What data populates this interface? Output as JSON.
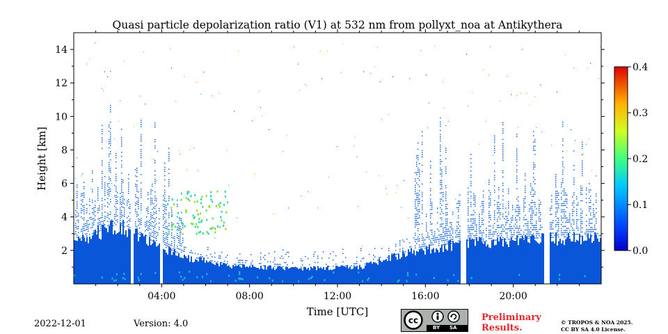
{
  "chart_data": {
    "type": "heatmap",
    "title": "Quasi particle depolarization ratio (V1) at 532 nm from pollyxt_noa at Antikythera",
    "xlabel": "Time [UTC]",
    "ylabel": "Height [km]",
    "xlim": [
      0,
      24
    ],
    "ylim": [
      0,
      15
    ],
    "x_ticks": [
      {
        "value": 4,
        "label": "04:00"
      },
      {
        "value": 8,
        "label": "08:00"
      },
      {
        "value": 12,
        "label": "12:00"
      },
      {
        "value": 16,
        "label": "16:00"
      },
      {
        "value": 20,
        "label": "20:00"
      }
    ],
    "y_ticks": [
      {
        "value": 2,
        "label": "2"
      },
      {
        "value": 4,
        "label": "4"
      },
      {
        "value": 6,
        "label": "6"
      },
      {
        "value": 8,
        "label": "8"
      },
      {
        "value": 10,
        "label": "10"
      },
      {
        "value": 12,
        "label": "12"
      },
      {
        "value": 14,
        "label": "14"
      }
    ],
    "colorbar": {
      "min": 0.0,
      "max": 0.4,
      "ticks": [
        {
          "value": 0.0,
          "label": "0.0"
        },
        {
          "value": 0.1,
          "label": "0.1"
        },
        {
          "value": 0.2,
          "label": "0.2"
        },
        {
          "value": 0.3,
          "label": "0.3"
        },
        {
          "value": 0.4,
          "label": "0.4"
        }
      ],
      "colormap": "jet"
    },
    "features": {
      "boundary_layer_top_km": [
        {
          "time": 0,
          "height": 2.5
        },
        {
          "time": 2,
          "height": 3.5
        },
        {
          "time": 4,
          "height": 2.2
        },
        {
          "time": 5,
          "height": 1.6
        },
        {
          "time": 7,
          "height": 1.1
        },
        {
          "time": 10,
          "height": 0.9
        },
        {
          "time": 13,
          "height": 1.0
        },
        {
          "time": 15,
          "height": 1.8
        },
        {
          "time": 17,
          "height": 2.3
        },
        {
          "time": 20,
          "height": 2.6
        },
        {
          "time": 24,
          "height": 2.8
        }
      ],
      "missing_data_hours": [
        [
          2.55,
          2.7
        ],
        [
          3.9,
          4.05
        ],
        [
          17.55,
          17.85
        ],
        [
          21.4,
          21.6
        ]
      ],
      "aerosol_layer": {
        "time_range": [
          4.2,
          7.0
        ],
        "height_range": [
          3.0,
          5.6
        ],
        "depol_range": [
          0.1,
          0.25
        ]
      }
    }
  },
  "footer": {
    "date": "2022-12-01",
    "version": "Version: 4.0",
    "license_badge": {
      "cc": "cc",
      "by": "BY",
      "sa": "SA"
    },
    "preliminary": [
      "Preliminary",
      "Results."
    ],
    "copyright": [
      "© TROPOS & NOA 2025.",
      "CC BY SA 4.0 License."
    ]
  },
  "colors": {
    "low_depol": "#0a56d8",
    "mid_depol": "#21c4d4",
    "high_depol": "#f0e020",
    "max_depol": "#e81a10",
    "preliminary_text": "#e8262c"
  }
}
